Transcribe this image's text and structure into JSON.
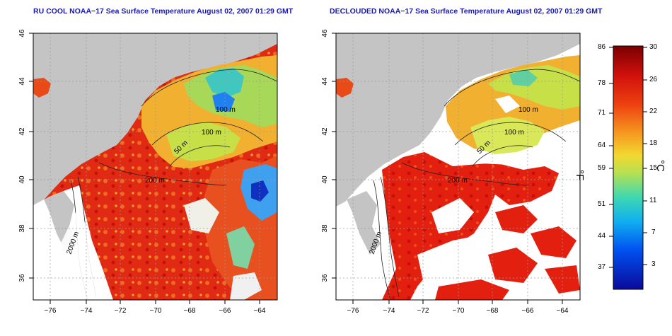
{
  "panels": [
    {
      "title": "RU COOL NOAA−17 Sea Surface Temperature August 02, 2007 01:29 GMT",
      "x_ticks": [
        "−76",
        "−74",
        "−72",
        "−70",
        "−68",
        "−66",
        "−64"
      ],
      "y_ticks": [
        "46",
        "44",
        "42",
        "40",
        "38",
        "36"
      ],
      "contour_labels": [
        "100 m",
        "100 m",
        "50 m",
        "200 m",
        "2000 m"
      ]
    },
    {
      "title": "DECLOUDED NOAA−17 Sea Surface Temperature August 02, 2007 01:29 GMT",
      "x_ticks": [
        "−76",
        "−74",
        "−72",
        "−70",
        "−68",
        "−66",
        "−64"
      ],
      "y_ticks": [
        "46",
        "44",
        "42",
        "40",
        "38",
        "36"
      ],
      "contour_labels": [
        "100 m",
        "100 m",
        "50 m",
        "200 m",
        "2000 m"
      ]
    }
  ],
  "colorbar": {
    "fahrenheit_labels": [
      "86",
      "78",
      "71",
      "64",
      "59",
      "51",
      "44",
      "37"
    ],
    "celsius_labels": [
      "30",
      "26",
      "22",
      "18",
      "15",
      "11",
      "7",
      "3"
    ],
    "f_unit": "°F",
    "c_unit": "°C",
    "colors": [
      "#8b0000",
      "#dd1a10",
      "#f05a10",
      "#f5a020",
      "#f0e040",
      "#90e060",
      "#30d0c0",
      "#10a0f0",
      "#0040f0",
      "#1010a0"
    ]
  },
  "colors": {
    "land": "#c4c4c4",
    "title_text": "#1a1aa8",
    "cloud": "#ffffff"
  }
}
